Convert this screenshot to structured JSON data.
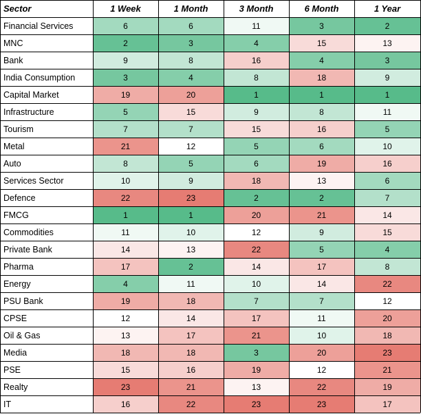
{
  "chart_data": {
    "type": "heatmap",
    "corner_label": "Sector",
    "columns": [
      "1 Week",
      "1 Month",
      "3 Month",
      "6 Month",
      "1 Year"
    ],
    "rows": [
      {
        "sector": "Financial Services",
        "values": [
          6,
          6,
          11,
          3,
          2
        ]
      },
      {
        "sector": "MNC",
        "values": [
          2,
          3,
          4,
          15,
          13
        ]
      },
      {
        "sector": "Bank",
        "values": [
          9,
          8,
          16,
          4,
          3
        ]
      },
      {
        "sector": "India Consumption",
        "values": [
          3,
          4,
          8,
          18,
          9
        ]
      },
      {
        "sector": "Capital Market",
        "values": [
          19,
          20,
          1,
          1,
          1
        ]
      },
      {
        "sector": "Infrastructure",
        "values": [
          5,
          15,
          9,
          8,
          11
        ]
      },
      {
        "sector": "Tourism",
        "values": [
          7,
          7,
          15,
          16,
          5
        ]
      },
      {
        "sector": "Metal",
        "values": [
          21,
          12,
          5,
          6,
          10
        ]
      },
      {
        "sector": "Auto",
        "values": [
          8,
          5,
          6,
          19,
          16
        ]
      },
      {
        "sector": "Services Sector",
        "values": [
          10,
          9,
          18,
          13,
          6
        ]
      },
      {
        "sector": "Defence",
        "values": [
          22,
          23,
          2,
          2,
          7
        ]
      },
      {
        "sector": "FMCG",
        "values": [
          1,
          1,
          20,
          21,
          14
        ]
      },
      {
        "sector": "Commodities",
        "values": [
          11,
          10,
          12,
          9,
          15
        ]
      },
      {
        "sector": "Private Bank",
        "values": [
          14,
          13,
          22,
          5,
          4
        ]
      },
      {
        "sector": "Pharma",
        "values": [
          17,
          2,
          14,
          17,
          8
        ]
      },
      {
        "sector": "Energy",
        "values": [
          4,
          11,
          10,
          14,
          22
        ]
      },
      {
        "sector": "PSU Bank",
        "values": [
          19,
          18,
          7,
          7,
          12
        ]
      },
      {
        "sector": "CPSE",
        "values": [
          12,
          14,
          17,
          11,
          20
        ]
      },
      {
        "sector": "Oil & Gas",
        "values": [
          13,
          17,
          21,
          10,
          18
        ]
      },
      {
        "sector": "Media",
        "values": [
          18,
          18,
          3,
          20,
          23
        ]
      },
      {
        "sector": "PSE",
        "values": [
          15,
          16,
          19,
          12,
          21
        ]
      },
      {
        "sector": "Realty",
        "values": [
          23,
          21,
          13,
          22,
          19
        ]
      },
      {
        "sector": "IT",
        "values": [
          16,
          22,
          23,
          23,
          17
        ]
      }
    ],
    "color_scale": {
      "low": "#57bb8a",
      "mid": "#ffffff",
      "high": "#e67c73",
      "min": 1,
      "mid_value": 12,
      "max": 23
    }
  }
}
